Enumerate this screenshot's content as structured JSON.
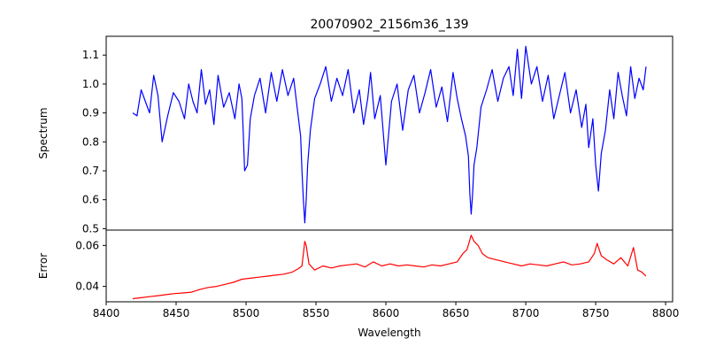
{
  "chart_data": {
    "type": "line",
    "title": "20070902_2156m36_139",
    "xlabel": "Wavelength",
    "xlim": [
      8400,
      8805
    ],
    "x_ticks": [
      8400,
      8450,
      8500,
      8550,
      8600,
      8650,
      8700,
      8750,
      8800
    ],
    "grid": false,
    "panels": [
      {
        "name": "spectrum-panel",
        "ylabel": "Spectrum",
        "ylim": [
          0.495,
          1.165
        ],
        "y_ticks": [
          0.5,
          0.6,
          0.7,
          0.8,
          0.9,
          1.0,
          1.1
        ],
        "y_tick_labels": [
          "0.5",
          "0.6",
          "0.7",
          "0.8",
          "0.9",
          "1.0",
          "1.1"
        ],
        "series": [
          {
            "color": "#0000ff",
            "x": [
              8419,
              8422,
              8425,
              8428,
              8431,
              8434,
              8437,
              8440,
              8444,
              8448,
              8452,
              8456,
              8459,
              8462,
              8465,
              8468,
              8471,
              8474,
              8477,
              8480,
              8484,
              8488,
              8492,
              8495,
              8497,
              8498,
              8499,
              8501,
              8503,
              8506,
              8510,
              8514,
              8518,
              8522,
              8526,
              8530,
              8534,
              8537,
              8539,
              8540,
              8541,
              8542,
              8543,
              8544,
              8546,
              8549,
              8553,
              8557,
              8561,
              8565,
              8569,
              8573,
              8577,
              8581,
              8584,
              8587,
              8589,
              8592,
              8596,
              8600,
              8604,
              8608,
              8612,
              8616,
              8620,
              8624,
              8628,
              8632,
              8636,
              8640,
              8644,
              8648,
              8651,
              8654,
              8657,
              8659,
              8660,
              8661,
              8662,
              8663,
              8665,
              8668,
              8672,
              8676,
              8680,
              8684,
              8688,
              8691,
              8694,
              8697,
              8700,
              8704,
              8708,
              8712,
              8716,
              8720,
              8724,
              8728,
              8732,
              8736,
              8740,
              8743,
              8745,
              8748,
              8750,
              8752,
              8754,
              8757,
              8760,
              8763,
              8766,
              8769,
              8772,
              8775,
              8778,
              8781,
              8784,
              8786
            ],
            "values": [
              0.9,
              0.89,
              0.98,
              0.94,
              0.9,
              1.03,
              0.96,
              0.8,
              0.89,
              0.97,
              0.94,
              0.88,
              1.0,
              0.94,
              0.9,
              1.05,
              0.93,
              0.98,
              0.86,
              1.03,
              0.92,
              0.97,
              0.88,
              1.0,
              0.95,
              0.83,
              0.7,
              0.72,
              0.88,
              0.96,
              1.02,
              0.9,
              1.04,
              0.94,
              1.05,
              0.96,
              1.02,
              0.9,
              0.82,
              0.7,
              0.6,
              0.52,
              0.6,
              0.72,
              0.84,
              0.95,
              1.0,
              1.06,
              0.94,
              1.02,
              0.96,
              1.05,
              0.9,
              0.98,
              0.86,
              0.95,
              1.04,
              0.88,
              0.96,
              0.72,
              0.94,
              1.0,
              0.84,
              0.98,
              1.03,
              0.9,
              0.97,
              1.05,
              0.92,
              0.99,
              0.87,
              1.04,
              0.95,
              0.88,
              0.82,
              0.75,
              0.62,
              0.55,
              0.62,
              0.72,
              0.78,
              0.92,
              0.98,
              1.05,
              0.94,
              1.02,
              1.06,
              0.96,
              1.12,
              0.95,
              1.13,
              1.0,
              1.06,
              0.94,
              1.03,
              0.88,
              0.96,
              1.04,
              0.9,
              0.98,
              0.85,
              0.93,
              0.78,
              0.88,
              0.72,
              0.63,
              0.76,
              0.84,
              0.98,
              0.88,
              1.04,
              0.96,
              0.89,
              1.06,
              0.95,
              1.02,
              0.98,
              1.06
            ]
          }
        ]
      },
      {
        "name": "error-panel",
        "ylabel": "Error",
        "ylim": [
          0.0325,
          0.0675
        ],
        "y_ticks": [
          0.04,
          0.06
        ],
        "y_tick_labels": [
          "0.04",
          "0.06"
        ],
        "series": [
          {
            "color": "#ff0000",
            "x": [
              8419,
              8425,
              8431,
              8437,
              8443,
              8449,
              8455,
              8461,
              8467,
              8473,
              8479,
              8485,
              8491,
              8497,
              8503,
              8509,
              8515,
              8521,
              8527,
              8533,
              8537,
              8540,
              8542,
              8543,
              8545,
              8549,
              8555,
              8561,
              8567,
              8573,
              8579,
              8585,
              8591,
              8597,
              8603,
              8609,
              8615,
              8621,
              8627,
              8633,
              8639,
              8645,
              8651,
              8655,
              8658,
              8661,
              8663,
              8666,
              8669,
              8673,
              8679,
              8685,
              8691,
              8697,
              8703,
              8709,
              8715,
              8721,
              8727,
              8733,
              8739,
              8745,
              8749,
              8751,
              8754,
              8758,
              8763,
              8768,
              8773,
              8777,
              8780,
              8783,
              8786
            ],
            "values": [
              0.034,
              0.0345,
              0.035,
              0.0355,
              0.036,
              0.0365,
              0.0368,
              0.0372,
              0.0385,
              0.0395,
              0.04,
              0.041,
              0.042,
              0.0435,
              0.044,
              0.0445,
              0.045,
              0.0455,
              0.046,
              0.047,
              0.0485,
              0.05,
              0.062,
              0.06,
              0.051,
              0.048,
              0.05,
              0.049,
              0.05,
              0.0505,
              0.051,
              0.0495,
              0.052,
              0.05,
              0.051,
              0.05,
              0.0505,
              0.05,
              0.0495,
              0.0505,
              0.05,
              0.051,
              0.052,
              0.056,
              0.058,
              0.065,
              0.062,
              0.06,
              0.056,
              0.054,
              0.053,
              0.052,
              0.051,
              0.05,
              0.051,
              0.0505,
              0.05,
              0.051,
              0.052,
              0.0505,
              0.051,
              0.052,
              0.056,
              0.061,
              0.055,
              0.053,
              0.051,
              0.054,
              0.05,
              0.059,
              0.048,
              0.047,
              0.045
            ]
          }
        ]
      }
    ]
  }
}
